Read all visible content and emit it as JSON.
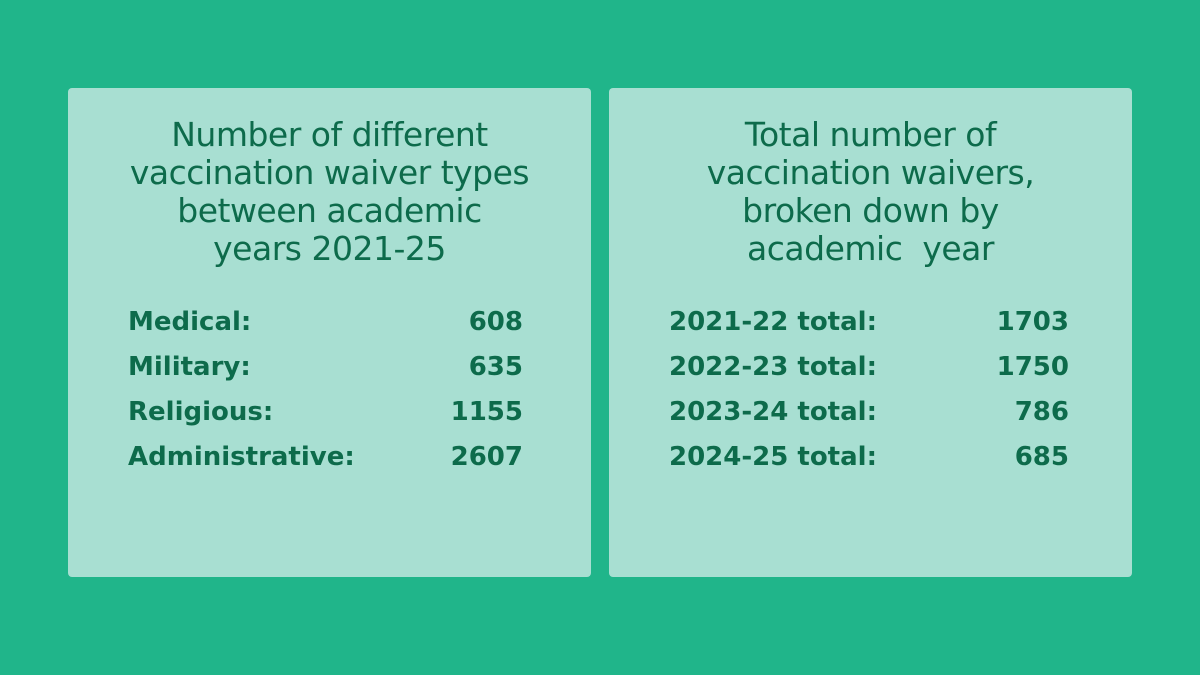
{
  "panels": [
    {
      "title": [
        "Number of different",
        "vaccination waiver types",
        "between academic",
        "years 2021-25"
      ],
      "rows": [
        [
          "Medical:",
          608
        ],
        [
          "Military:",
          635
        ],
        [
          "Religious:",
          1155
        ],
        [
          "Administrative:",
          2607
        ]
      ]
    },
    {
      "title": [
        "Total number of",
        "vaccination waivers,",
        "broken down by",
        "academic  year"
      ],
      "rows": [
        [
          "2021-22 total:",
          1703
        ],
        [
          "2022-23 total:",
          1750
        ],
        [
          "2023-24 total:",
          786
        ],
        [
          "2024-25 total:",
          685
        ]
      ]
    }
  ]
}
